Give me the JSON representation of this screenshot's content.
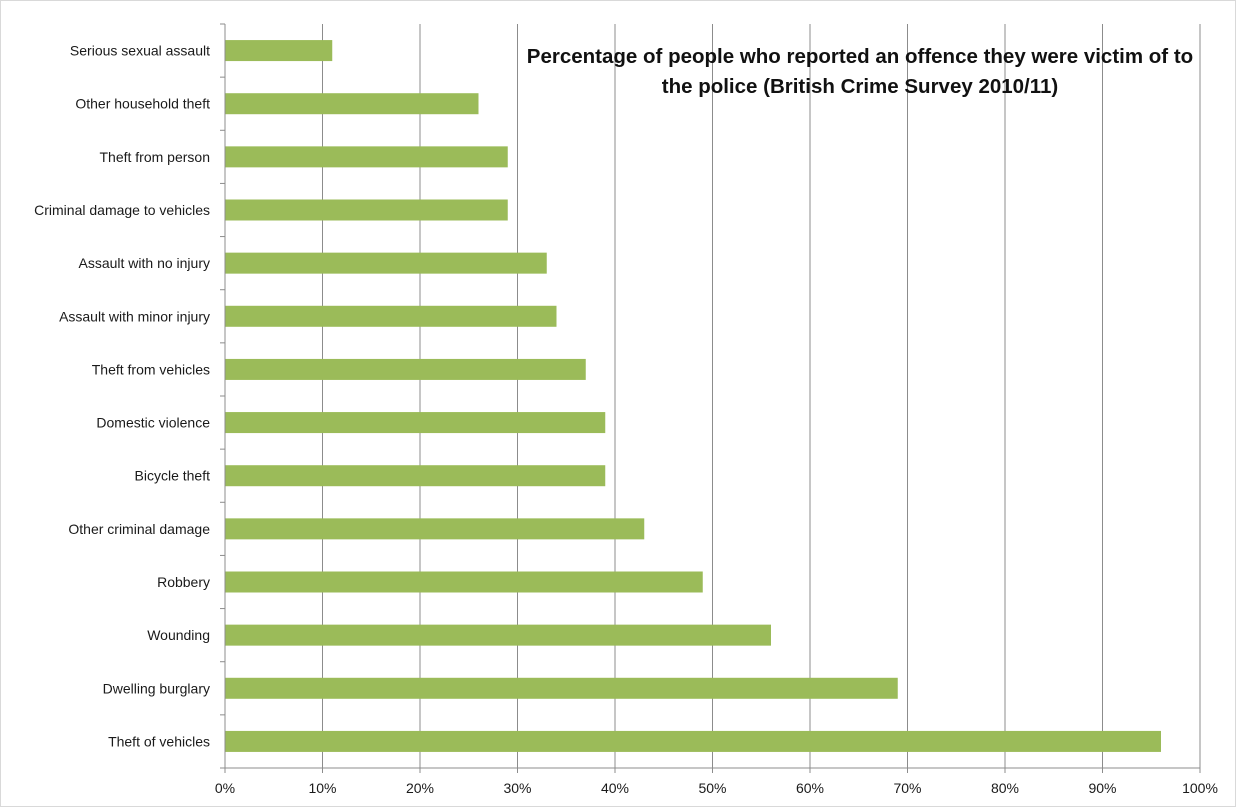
{
  "chart_data": {
    "type": "bar",
    "orientation": "horizontal",
    "title": "Percentage of people who reported an offence they were victim of to the police (British Crime Survey 2010/11)",
    "xlabel": "",
    "ylabel": "",
    "categories": [
      "Serious sexual assault",
      "Other household theft",
      "Theft from person",
      "Criminal damage to vehicles",
      "Assault with no injury",
      "Assault with minor injury",
      "Theft from vehicles",
      "Domestic violence",
      "Bicycle theft",
      "Other criminal damage",
      "Robbery",
      "Wounding",
      "Dwelling burglary",
      "Theft of vehicles"
    ],
    "values": [
      11,
      26,
      29,
      29,
      33,
      34,
      37,
      39,
      39,
      43,
      49,
      56,
      69,
      96
    ],
    "xlim": [
      0,
      100
    ],
    "xticks": [
      "0%",
      "10%",
      "20%",
      "30%",
      "40%",
      "50%",
      "60%",
      "70%",
      "80%",
      "90%",
      "100%"
    ],
    "grid": "vertical",
    "legend": "none",
    "colors": {
      "bar": "#9bbb59",
      "grid": "#8c8c8c",
      "axis": "#8c8c8c",
      "text": "#1a1a1a"
    }
  }
}
